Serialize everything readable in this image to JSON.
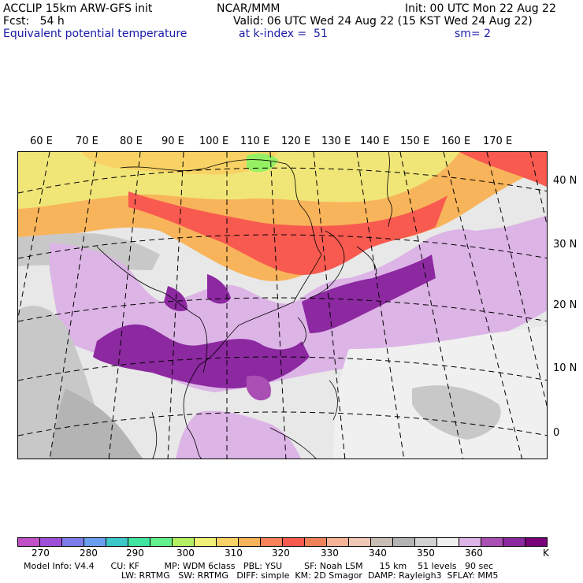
{
  "header": {
    "line1_left": "ACCLIP 15km ARW-GFS init",
    "line1_mid": "NCAR/MMM",
    "line1_right": "Init: 00 UTC Mon 22 Aug 22",
    "line2_left": "Fcst:   54 h",
    "line2_right": "Valid: 06 UTC Wed 24 Aug 22 (15 KST Wed 24 Aug 22)",
    "line3_left": "Equivalent potential temperature",
    "line3_mid": "at k-index =  51",
    "line3_right": "sm= 2"
  },
  "longitudes": [
    "60 E",
    "70 E",
    "80 E",
    "90 E",
    "100 E",
    "110 E",
    "120 E",
    "130 E",
    "140 E",
    "150 E",
    "160 E",
    "170 E"
  ],
  "latitudes": [
    "40 N",
    "30 N",
    "20 N",
    "10 N",
    "0"
  ],
  "colorbar": {
    "colors": [
      "#c050c8",
      "#a050d8",
      "#7d7dea",
      "#6a9ef0",
      "#3cc8c8",
      "#40e6a0",
      "#64f08c",
      "#b4f064",
      "#f0f078",
      "#f8d264",
      "#f8b45a",
      "#f8825a",
      "#f85a50",
      "#f0825a",
      "#f8b496",
      "#f0c8b4",
      "#c8beb4",
      "#b4b4b4",
      "#d2d2d2",
      "#f0f0f0",
      "#dcb4e6",
      "#aa50b4",
      "#8c28a0",
      "#780078"
    ],
    "labels": [
      "270",
      "280",
      "290",
      "300",
      "310",
      "320",
      "330",
      "340",
      "350",
      "360",
      "K"
    ]
  },
  "info": {
    "line1": "Model Info: V4.4      CU: KF         MP: WDM 6class   PBL: YSU        SF: Noah LSM      15 km    51 levels   90 sec",
    "line2": "LW: RRTMG   SW: RRTMG   DIFF: simple  KM: 2D Smagor  DAMP: Rayleigh3  SFLAY: MM5"
  }
}
